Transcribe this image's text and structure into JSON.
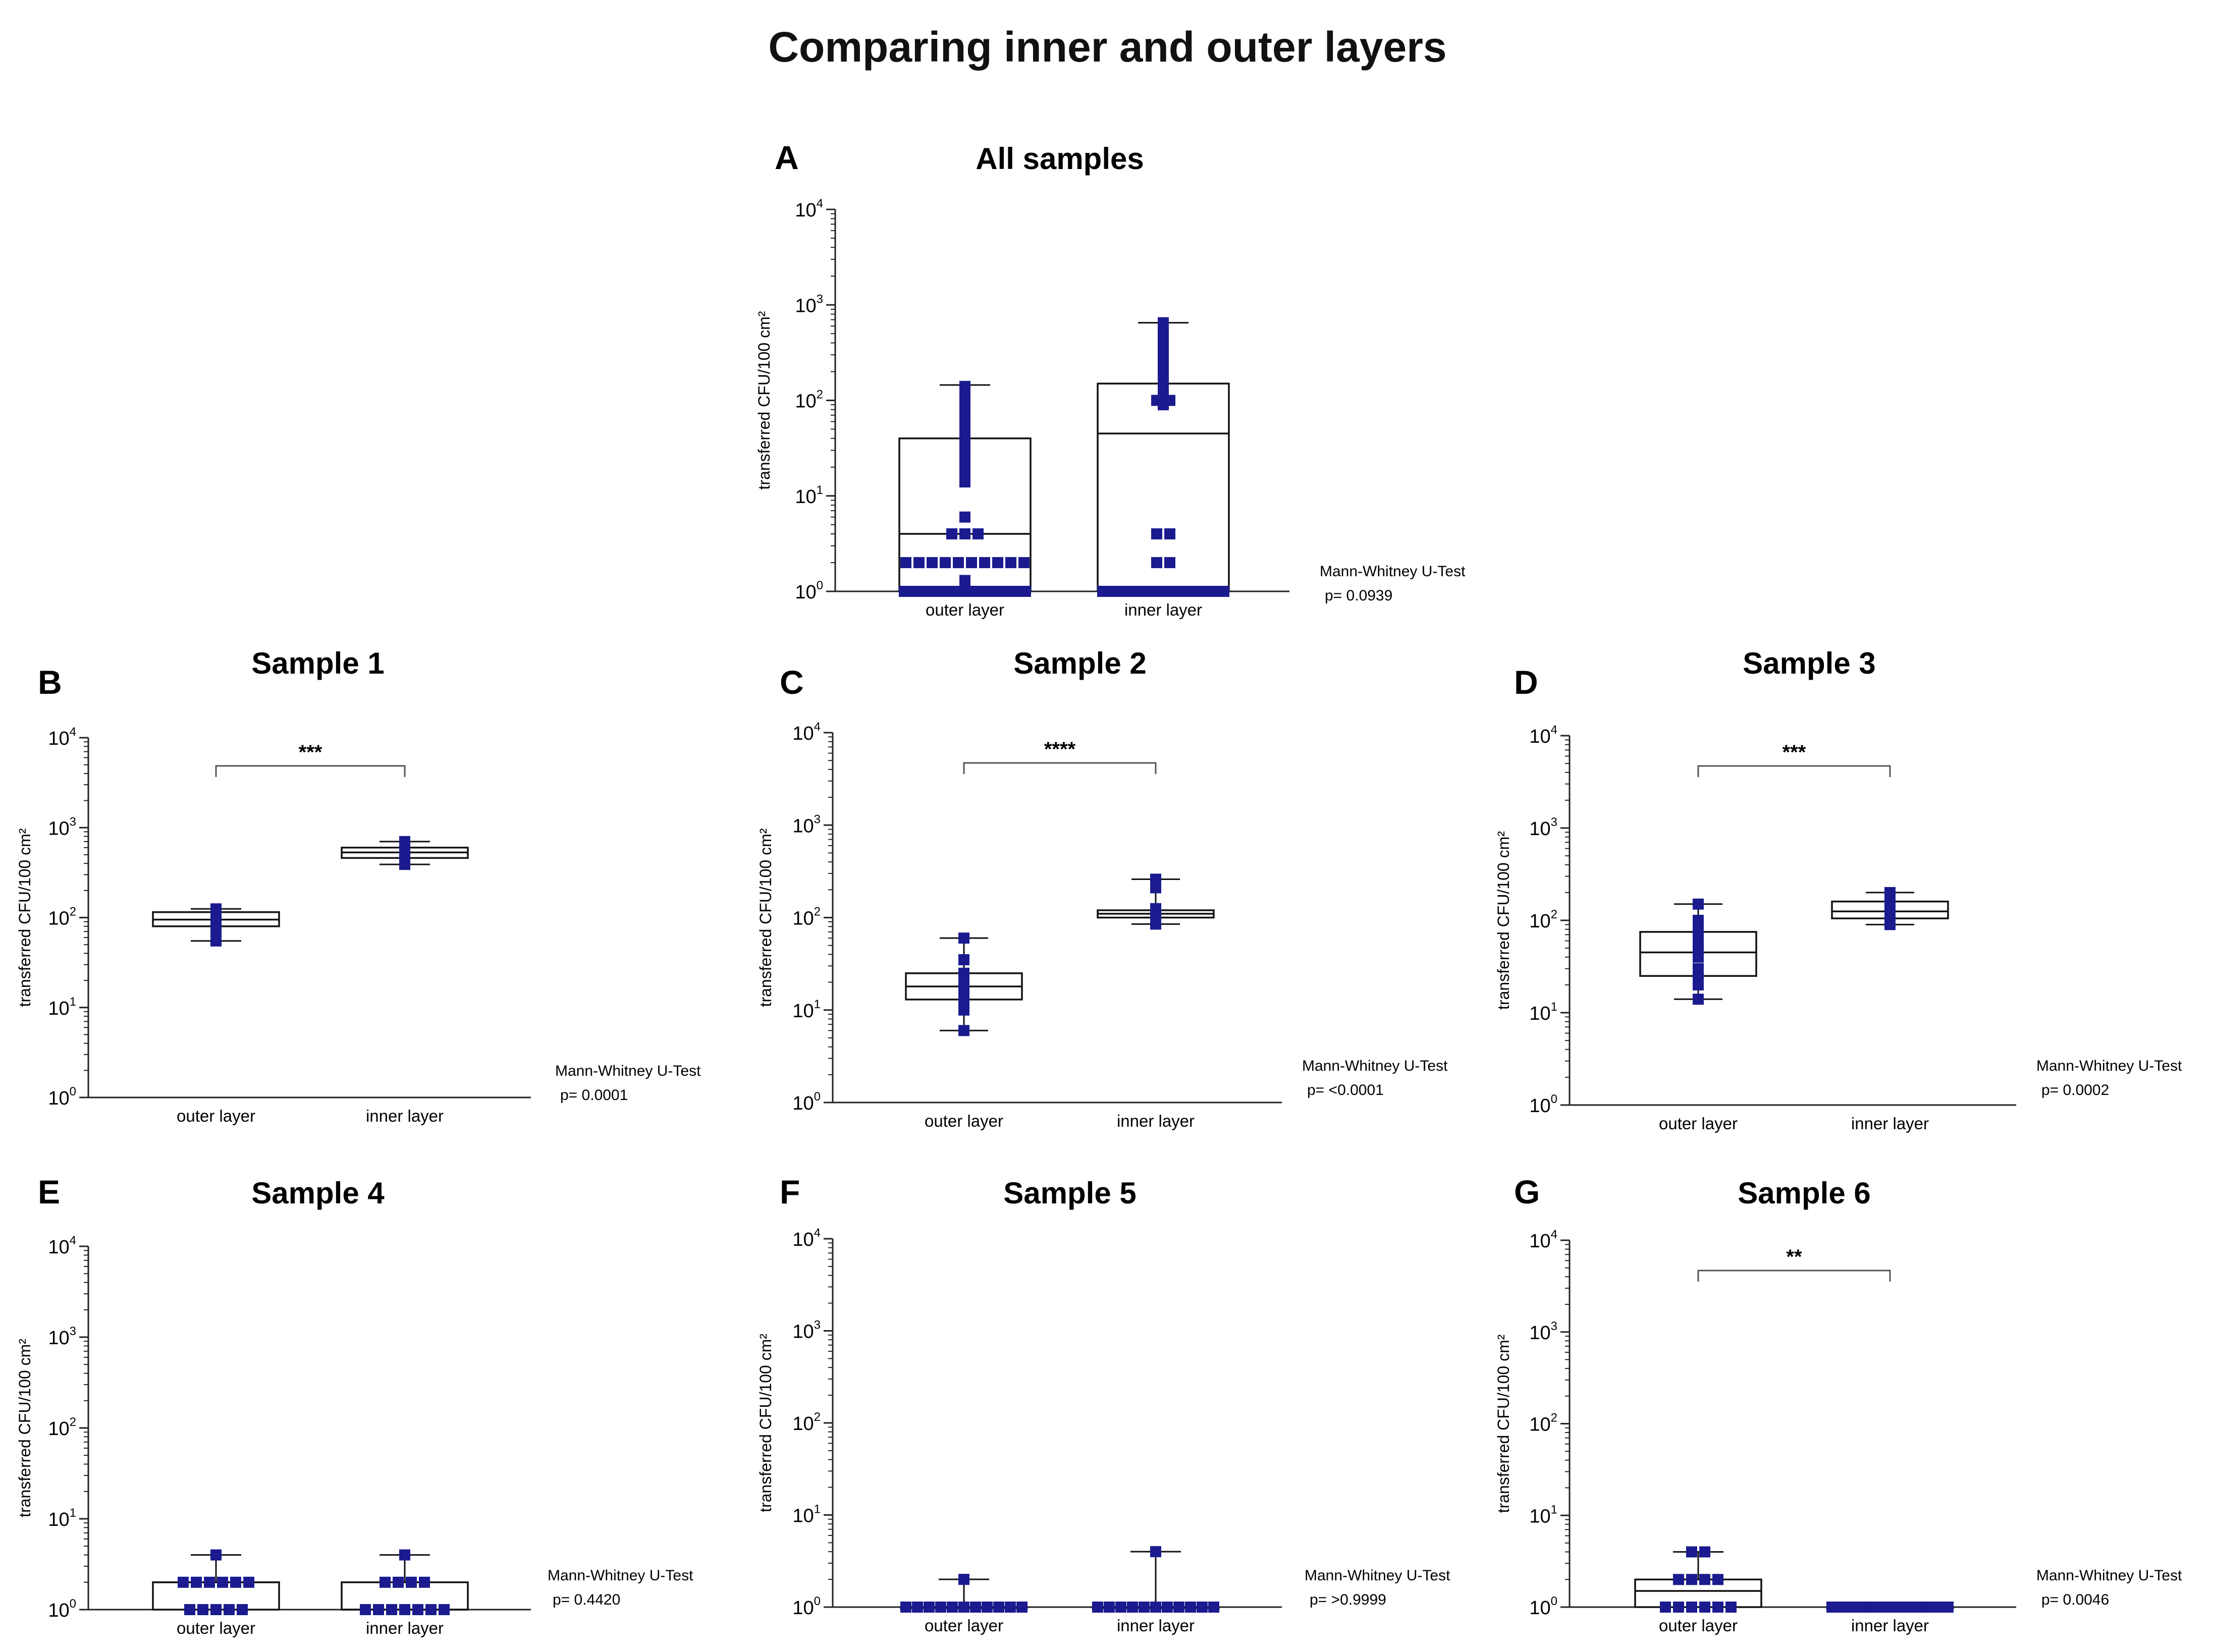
{
  "figure_title": "Comparing inner and outer layers",
  "colors": {
    "marker": "#1b1b8f",
    "axis": "#222222",
    "box": "#111111"
  },
  "chart_data": [
    {
      "panel": "A",
      "title": "All samples",
      "type": "box",
      "yscale": "log",
      "ylim": [
        1,
        10000
      ],
      "yticks": [
        "10^0",
        "10^1",
        "10^2",
        "10^3",
        "10^4"
      ],
      "ylabel": "transferred CFU/100 cm²",
      "categories": [
        "outer layer",
        "inner layer"
      ],
      "test": "Mann-Whitney U-Test",
      "p_value": "0.0939",
      "significance": "",
      "boxes": [
        {
          "min": 1,
          "q1": 1,
          "median": 4,
          "q3": 40,
          "max": 145
        },
        {
          "min": 1,
          "q1": 1,
          "median": 45,
          "q3": 150,
          "max": 650
        }
      ],
      "points": [
        [
          1,
          1,
          1,
          1,
          1,
          1,
          1,
          1,
          1,
          1,
          1,
          1,
          1,
          1,
          1,
          1,
          1.3,
          2,
          2,
          2,
          2,
          2,
          2,
          2,
          2,
          2,
          2,
          4,
          4,
          4,
          6,
          14,
          15,
          18,
          20,
          22,
          25,
          28,
          30,
          35,
          40,
          45,
          50,
          55,
          60,
          65,
          70,
          75,
          80,
          85,
          90,
          100,
          110,
          120,
          130,
          140
        ],
        [
          1,
          1,
          1,
          1,
          1,
          1,
          1,
          1,
          1,
          1,
          1,
          1,
          1,
          1,
          1,
          1,
          1,
          1,
          1,
          1,
          2,
          2,
          4,
          4,
          90,
          95,
          100,
          100,
          105,
          110,
          115,
          120,
          125,
          130,
          140,
          150,
          170,
          200,
          230,
          260,
          300,
          330,
          380,
          420,
          460,
          500,
          530,
          560,
          600,
          620,
          650
        ]
      ]
    },
    {
      "panel": "B",
      "title": "Sample 1",
      "type": "box",
      "yscale": "log",
      "ylim": [
        1,
        10000
      ],
      "yticks": [
        "10^0",
        "10^1",
        "10^2",
        "10^3",
        "10^4"
      ],
      "ylabel": "transferred CFU/100 cm²",
      "categories": [
        "outer layer",
        "inner layer"
      ],
      "test": "Mann-Whitney U-Test",
      "p_value": "0.0001",
      "significance": "***",
      "boxes": [
        {
          "min": 55,
          "q1": 80,
          "median": 95,
          "q3": 115,
          "max": 125
        },
        {
          "min": 390,
          "q1": 460,
          "median": 530,
          "q3": 600,
          "max": 700
        }
      ],
      "points": [
        [
          55,
          70,
          80,
          85,
          90,
          95,
          100,
          110,
          115,
          120,
          125
        ],
        [
          390,
          420,
          450,
          480,
          500,
          530,
          560,
          580,
          600,
          650,
          700
        ]
      ]
    },
    {
      "panel": "C",
      "title": "Sample 2",
      "type": "box",
      "yscale": "log",
      "ylim": [
        1,
        10000
      ],
      "yticks": [
        "10^0",
        "10^1",
        "10^2",
        "10^3",
        "10^4"
      ],
      "ylabel": "transferred CFU/100 cm²",
      "categories": [
        "outer layer",
        "inner layer"
      ],
      "test": "Mann-Whitney U-Test",
      "p_value": "<0.0001",
      "significance": "****",
      "boxes": [
        {
          "min": 6,
          "q1": 13,
          "median": 18,
          "q3": 25,
          "max": 60
        },
        {
          "min": 85,
          "q1": 100,
          "median": 110,
          "q3": 120,
          "max": 260
        }
      ],
      "points": [
        [
          6,
          10,
          12,
          14,
          15,
          18,
          20,
          22,
          25,
          35,
          60
        ],
        [
          85,
          90,
          95,
          100,
          105,
          110,
          115,
          120,
          125,
          210,
          260
        ]
      ]
    },
    {
      "panel": "D",
      "title": "Sample 3",
      "type": "box",
      "yscale": "log",
      "ylim": [
        1,
        10000
      ],
      "yticks": [
        "10^0",
        "10^1",
        "10^2",
        "10^3",
        "10^4"
      ],
      "ylabel": "transferred CFU/100 cm²",
      "categories": [
        "outer layer",
        "inner layer"
      ],
      "test": "Mann-Whitney U-Test",
      "p_value": "0.0002",
      "significance": "***",
      "boxes": [
        {
          "min": 14,
          "q1": 25,
          "median": 45,
          "q3": 75,
          "max": 150
        },
        {
          "min": 90,
          "q1": 105,
          "median": 125,
          "q3": 160,
          "max": 200
        }
      ],
      "points": [
        [
          14,
          20,
          25,
          30,
          40,
          45,
          55,
          70,
          80,
          100,
          150
        ],
        [
          90,
          100,
          105,
          110,
          120,
          130,
          140,
          160,
          170,
          190,
          200
        ]
      ]
    },
    {
      "panel": "E",
      "title": "Sample 4",
      "type": "box",
      "yscale": "log",
      "ylim": [
        1,
        10000
      ],
      "yticks": [
        "10^0",
        "10^1",
        "10^2",
        "10^3",
        "10^4"
      ],
      "ylabel": "transferred CFU/100 cm²",
      "categories": [
        "outer layer",
        "inner layer"
      ],
      "test": "Mann-Whitney U-Test",
      "p_value": "0.4420",
      "significance": "",
      "boxes": [
        {
          "min": 1,
          "q1": 1,
          "median": 2,
          "q3": 2,
          "max": 4
        },
        {
          "min": 1,
          "q1": 1,
          "median": 1,
          "q3": 2,
          "max": 4
        }
      ],
      "points": [
        [
          1,
          1,
          1,
          1,
          1,
          2,
          2,
          2,
          2,
          2,
          2,
          4
        ],
        [
          1,
          1,
          1,
          1,
          1,
          1,
          1,
          2,
          2,
          2,
          2,
          4
        ]
      ]
    },
    {
      "panel": "F",
      "title": "Sample 5",
      "type": "box",
      "yscale": "log",
      "ylim": [
        1,
        10000
      ],
      "yticks": [
        "10^0",
        "10^1",
        "10^2",
        "10^3",
        "10^4"
      ],
      "ylabel": "transferred CFU/100 cm²",
      "categories": [
        "outer layer",
        "inner layer"
      ],
      "test": "Mann-Whitney U-Test",
      "p_value": ">0.9999",
      "significance": "",
      "boxes": [
        {
          "min": 1,
          "q1": 1,
          "median": 1,
          "q3": 1,
          "max": 2
        },
        {
          "min": 1,
          "q1": 1,
          "median": 1,
          "q3": 1,
          "max": 4
        }
      ],
      "points": [
        [
          1,
          1,
          1,
          1,
          1,
          1,
          1,
          1,
          1,
          1,
          1,
          2
        ],
        [
          1,
          1,
          1,
          1,
          1,
          1,
          1,
          1,
          1,
          1,
          1,
          4
        ]
      ]
    },
    {
      "panel": "G",
      "title": "Sample 6",
      "type": "box",
      "yscale": "log",
      "ylim": [
        1,
        10000
      ],
      "yticks": [
        "10^0",
        "10^1",
        "10^2",
        "10^3",
        "10^4"
      ],
      "ylabel": "transferred CFU/100 cm²",
      "categories": [
        "outer layer",
        "inner layer"
      ],
      "test": "Mann-Whitney U-Test",
      "p_value": "0.0046",
      "significance": "**",
      "boxes": [
        {
          "min": 1,
          "q1": 1,
          "median": 1.5,
          "q3": 2,
          "max": 4
        },
        {
          "min": 1,
          "q1": 1,
          "median": 1,
          "q3": 1,
          "max": 1
        }
      ],
      "points": [
        [
          1,
          1,
          1,
          1,
          1,
          1,
          2,
          2,
          2,
          2,
          4,
          4
        ],
        [
          1,
          1,
          1,
          1,
          1,
          1,
          1,
          1,
          1,
          1,
          1,
          1
        ]
      ]
    }
  ]
}
